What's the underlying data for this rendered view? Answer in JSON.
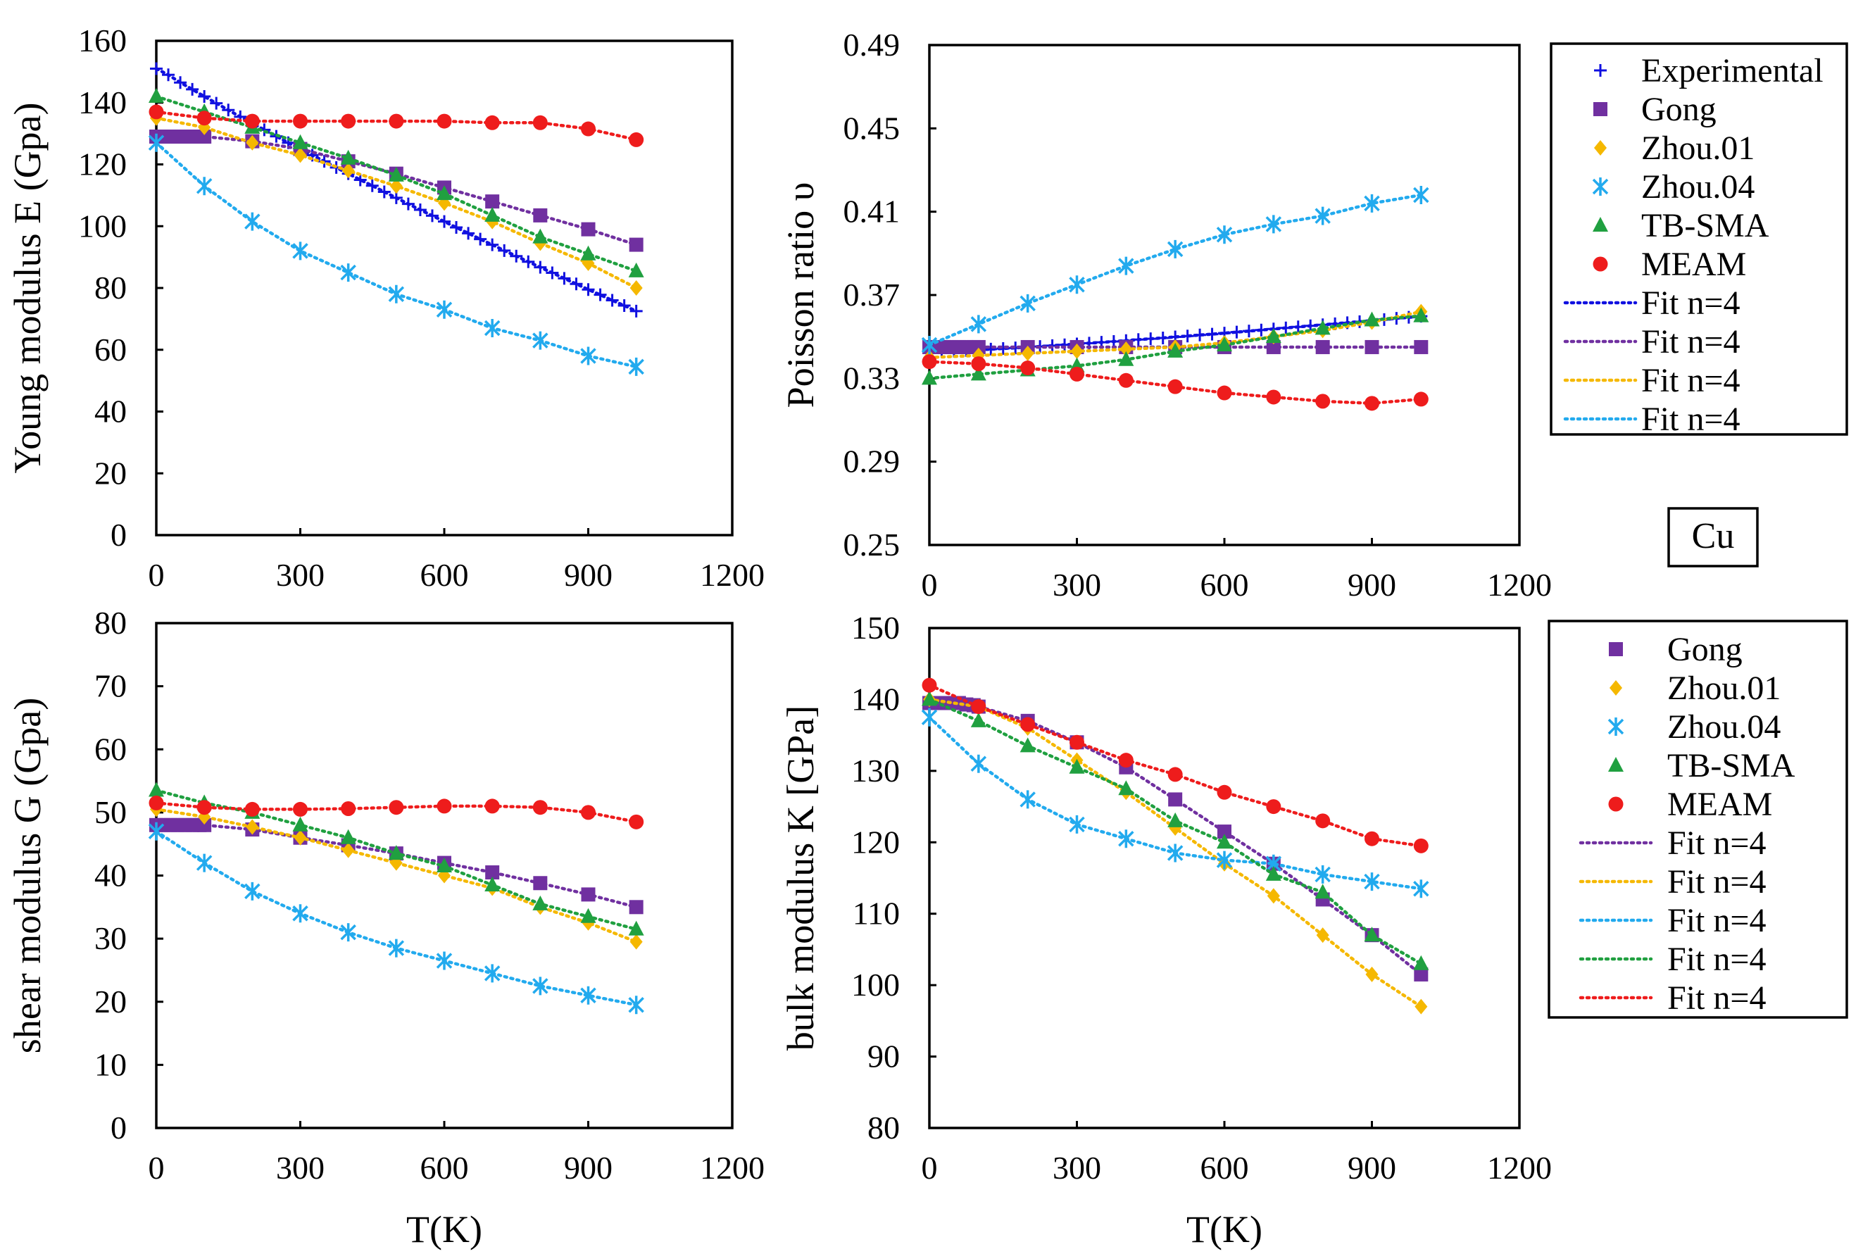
{
  "figure_label": "Cu",
  "colors": {
    "Experimental": "#1010e0",
    "Gong": "#7030a0",
    "Zhou.01": "#f5b800",
    "Zhou.04": "#22aaee",
    "TB-SMA": "#20a040",
    "MEAM": "#ee1c1c"
  },
  "legends": [
    {
      "entries": [
        {
          "type": "marker",
          "series": "Experimental",
          "label": "Experimental"
        },
        {
          "type": "marker",
          "series": "Gong",
          "label": "Gong"
        },
        {
          "type": "marker",
          "series": "Zhou.01",
          "label": "Zhou.01"
        },
        {
          "type": "marker",
          "series": "Zhou.04",
          "label": "Zhou.04"
        },
        {
          "type": "marker",
          "series": "TB-SMA",
          "label": "TB-SMA"
        },
        {
          "type": "marker",
          "series": "MEAM",
          "label": "MEAM"
        },
        {
          "type": "line",
          "series": "Experimental",
          "label": "Fit n=4"
        },
        {
          "type": "line",
          "series": "Gong",
          "label": "Fit n=4"
        },
        {
          "type": "line",
          "series": "Zhou.01",
          "label": "Fit n=4"
        },
        {
          "type": "line",
          "series": "Zhou.04",
          "label": "Fit n=4"
        }
      ]
    },
    {
      "entries": [
        {
          "type": "marker",
          "series": "Gong",
          "label": "Gong"
        },
        {
          "type": "marker",
          "series": "Zhou.01",
          "label": "Zhou.01"
        },
        {
          "type": "marker",
          "series": "Zhou.04",
          "label": "Zhou.04"
        },
        {
          "type": "marker",
          "series": "TB-SMA",
          "label": "TB-SMA"
        },
        {
          "type": "marker",
          "series": "MEAM",
          "label": "MEAM"
        },
        {
          "type": "line",
          "series": "Gong",
          "label": "Fit n=4"
        },
        {
          "type": "line",
          "series": "Zhou.01",
          "label": "Fit n=4"
        },
        {
          "type": "line",
          "series": "Zhou.04",
          "label": "Fit n=4"
        },
        {
          "type": "line",
          "series": "TB-SMA",
          "label": "Fit n=4"
        },
        {
          "type": "line",
          "series": "MEAM",
          "label": "Fit n=4"
        }
      ]
    }
  ],
  "chart_data": [
    {
      "id": "young",
      "type": "scatter",
      "title": "",
      "xlabel": "",
      "ylabel": "Young modulus E (Gpa)",
      "xlim": [
        0,
        1200
      ],
      "ylim": [
        0,
        160
      ],
      "xticks": [
        0,
        300,
        600,
        900,
        1200
      ],
      "yticks": [
        0,
        20,
        40,
        60,
        80,
        100,
        120,
        140,
        160
      ],
      "series": [
        {
          "name": "Experimental",
          "marker": "plus",
          "fit": true,
          "x": [
            0,
            25,
            50,
            75,
            100,
            125,
            150,
            175,
            200,
            225,
            250,
            275,
            300,
            325,
            350,
            375,
            400,
            425,
            450,
            475,
            500,
            525,
            550,
            575,
            600,
            625,
            650,
            675,
            700,
            725,
            750,
            775,
            800,
            825,
            850,
            875,
            900,
            925,
            950,
            975,
            1000
          ],
          "y": [
            151,
            149,
            146.5,
            144.3,
            142,
            139.8,
            137.6,
            135.4,
            133.3,
            131.2,
            129.1,
            127,
            125,
            123,
            121,
            119,
            117,
            115,
            113.1,
            111.1,
            109.2,
            107.2,
            105.3,
            103.4,
            101.5,
            99.6,
            97.7,
            95.8,
            94,
            92.1,
            90.3,
            88.5,
            86.7,
            84.9,
            83.1,
            81.3,
            79.5,
            77.8,
            76,
            74.3,
            72.5
          ]
        },
        {
          "name": "Gong",
          "marker": "square",
          "fit": true,
          "x": [
            0,
            15,
            30,
            45,
            60,
            75,
            90,
            100,
            200,
            300,
            400,
            500,
            600,
            700,
            800,
            900,
            1000
          ],
          "y": [
            129,
            129,
            129,
            129,
            129,
            129,
            129,
            129,
            127.5,
            125,
            121,
            117,
            112.5,
            108,
            103.5,
            99,
            94
          ]
        },
        {
          "name": "Zhou.01",
          "marker": "diamond",
          "fit": true,
          "x": [
            0,
            100,
            200,
            300,
            400,
            500,
            600,
            700,
            800,
            900,
            1000
          ],
          "y": [
            135,
            132,
            127,
            123,
            118,
            113,
            107.5,
            101.5,
            94.5,
            88,
            80
          ]
        },
        {
          "name": "Zhou.04",
          "marker": "x",
          "fit": true,
          "x": [
            0,
            100,
            200,
            300,
            400,
            500,
            600,
            700,
            800,
            900,
            1000
          ],
          "y": [
            127,
            113,
            101.5,
            92,
            85,
            78,
            73,
            67,
            63,
            58,
            54.5
          ]
        },
        {
          "name": "TB-SMA",
          "marker": "triangle",
          "fit": true,
          "x": [
            0,
            100,
            200,
            300,
            400,
            500,
            600,
            700,
            800,
            900,
            1000
          ],
          "y": [
            142,
            137,
            132,
            127,
            122,
            116.5,
            110.5,
            103.5,
            96.5,
            91,
            85.5
          ]
        },
        {
          "name": "MEAM",
          "marker": "circle",
          "fit": true,
          "x": [
            0,
            100,
            200,
            300,
            400,
            500,
            600,
            700,
            800,
            900,
            1000
          ],
          "y": [
            137,
            135,
            134,
            134,
            134,
            134,
            134,
            133.5,
            133.5,
            131.5,
            128
          ]
        }
      ]
    },
    {
      "id": "poisson",
      "type": "scatter",
      "title": "",
      "xlabel": "",
      "ylabel": "Poisson ratio υ",
      "xlim": [
        0,
        1200
      ],
      "ylim": [
        0.25,
        0.49
      ],
      "xticks": [
        0,
        300,
        600,
        900,
        1200
      ],
      "yticks": [
        0.25,
        0.29,
        0.33,
        0.37,
        0.41,
        0.45,
        0.49
      ],
      "ytick_labels": [
        "0.25",
        "0.29",
        "0.33",
        "0.37",
        "0.41",
        "0.45",
        "0.49"
      ],
      "series": [
        {
          "name": "Experimental",
          "marker": "plus",
          "fit": true,
          "x": [
            0,
            25,
            50,
            75,
            100,
            125,
            150,
            175,
            200,
            225,
            250,
            275,
            300,
            325,
            350,
            375,
            400,
            425,
            450,
            475,
            500,
            525,
            550,
            575,
            600,
            625,
            650,
            675,
            700,
            725,
            750,
            775,
            800,
            825,
            850,
            875,
            900,
            925,
            950,
            975,
            1000
          ],
          "y": [
            0.3425,
            0.3428,
            0.3431,
            0.3434,
            0.3437,
            0.344,
            0.3443,
            0.3446,
            0.345,
            0.3453,
            0.3457,
            0.3461,
            0.3465,
            0.3469,
            0.3473,
            0.3477,
            0.3481,
            0.3486,
            0.349,
            0.3494,
            0.3499,
            0.3503,
            0.3508,
            0.3512,
            0.3517,
            0.3522,
            0.3527,
            0.3532,
            0.3537,
            0.3542,
            0.3547,
            0.3552,
            0.3557,
            0.3562,
            0.3567,
            0.3572,
            0.3577,
            0.3582,
            0.3588,
            0.3593,
            0.3598
          ]
        },
        {
          "name": "Gong",
          "marker": "square",
          "fit": true,
          "x": [
            0,
            15,
            30,
            45,
            60,
            75,
            90,
            100,
            200,
            300,
            400,
            500,
            600,
            700,
            800,
            900,
            1000
          ],
          "y": [
            0.345,
            0.345,
            0.345,
            0.345,
            0.345,
            0.345,
            0.345,
            0.345,
            0.345,
            0.345,
            0.345,
            0.345,
            0.345,
            0.345,
            0.345,
            0.345,
            0.345
          ]
        },
        {
          "name": "Zhou.01",
          "marker": "diamond",
          "fit": true,
          "x": [
            0,
            100,
            200,
            300,
            400,
            500,
            600,
            700,
            800,
            900,
            1000
          ],
          "y": [
            0.34,
            0.341,
            0.342,
            0.343,
            0.344,
            0.345,
            0.347,
            0.35,
            0.353,
            0.357,
            0.362
          ]
        },
        {
          "name": "Zhou.04",
          "marker": "x",
          "fit": true,
          "x": [
            0,
            100,
            200,
            300,
            400,
            500,
            600,
            700,
            800,
            900,
            1000
          ],
          "y": [
            0.346,
            0.356,
            0.366,
            0.375,
            0.384,
            0.392,
            0.399,
            0.404,
            0.408,
            0.414,
            0.418
          ]
        },
        {
          "name": "TB-SMA",
          "marker": "triangle",
          "fit": true,
          "x": [
            0,
            100,
            200,
            300,
            400,
            500,
            600,
            700,
            800,
            900,
            1000
          ],
          "y": [
            0.33,
            0.332,
            0.334,
            0.336,
            0.339,
            0.343,
            0.346,
            0.35,
            0.354,
            0.358,
            0.36
          ]
        },
        {
          "name": "MEAM",
          "marker": "circle",
          "fit": true,
          "x": [
            0,
            100,
            200,
            300,
            400,
            500,
            600,
            700,
            800,
            900,
            1000
          ],
          "y": [
            0.338,
            0.337,
            0.335,
            0.332,
            0.329,
            0.326,
            0.323,
            0.321,
            0.319,
            0.318,
            0.32
          ]
        }
      ]
    },
    {
      "id": "shear",
      "type": "scatter",
      "title": "",
      "xlabel": "T(K)",
      "ylabel": "shear modulus G (Gpa)",
      "xlim": [
        0,
        1200
      ],
      "ylim": [
        0,
        80
      ],
      "xticks": [
        0,
        300,
        600,
        900,
        1200
      ],
      "yticks": [
        0,
        10,
        20,
        30,
        40,
        50,
        60,
        70,
        80
      ],
      "series": [
        {
          "name": "Gong",
          "marker": "square",
          "fit": true,
          "x": [
            0,
            15,
            30,
            45,
            60,
            75,
            90,
            100,
            200,
            300,
            400,
            500,
            600,
            700,
            800,
            900,
            1000
          ],
          "y": [
            48,
            48,
            48,
            48,
            48,
            48,
            48,
            48,
            47.3,
            46,
            44.8,
            43.5,
            42,
            40.5,
            38.8,
            37,
            35
          ]
        },
        {
          "name": "Zhou.01",
          "marker": "diamond",
          "fit": true,
          "x": [
            0,
            100,
            200,
            300,
            400,
            500,
            600,
            700,
            800,
            900,
            1000
          ],
          "y": [
            50.5,
            49.3,
            47.7,
            46,
            44,
            42,
            40,
            38,
            35,
            32.5,
            29.5
          ]
        },
        {
          "name": "Zhou.04",
          "marker": "x",
          "fit": true,
          "x": [
            0,
            100,
            200,
            300,
            400,
            500,
            600,
            700,
            800,
            900,
            1000
          ],
          "y": [
            47,
            42,
            37.5,
            34,
            31,
            28.5,
            26.5,
            24.5,
            22.5,
            21,
            19.5
          ]
        },
        {
          "name": "TB-SMA",
          "marker": "triangle",
          "fit": true,
          "x": [
            0,
            100,
            200,
            300,
            400,
            500,
            600,
            700,
            800,
            900,
            1000
          ],
          "y": [
            53.5,
            51.5,
            50,
            48,
            46,
            43.5,
            41.5,
            38.5,
            35.5,
            33.5,
            31.5
          ]
        },
        {
          "name": "MEAM",
          "marker": "circle",
          "fit": true,
          "x": [
            0,
            100,
            200,
            300,
            400,
            500,
            600,
            700,
            800,
            900,
            1000
          ],
          "y": [
            51.5,
            50.8,
            50.5,
            50.5,
            50.6,
            50.8,
            51,
            51,
            50.8,
            50,
            48.5
          ]
        }
      ]
    },
    {
      "id": "bulk",
      "type": "scatter",
      "title": "",
      "xlabel": "T(K)",
      "ylabel": "bulk modulus K  [GPa]",
      "xlim": [
        0,
        1200
      ],
      "ylim": [
        80,
        150
      ],
      "xticks": [
        0,
        300,
        600,
        900,
        1200
      ],
      "yticks": [
        80,
        90,
        100,
        110,
        120,
        130,
        140,
        150
      ],
      "series": [
        {
          "name": "Gong",
          "marker": "square",
          "fit": true,
          "x": [
            0,
            15,
            30,
            45,
            60,
            75,
            90,
            100,
            200,
            300,
            400,
            500,
            600,
            700,
            800,
            900,
            1000
          ],
          "y": [
            139.5,
            139.5,
            139.5,
            139.5,
            139.5,
            139.3,
            139.2,
            139,
            137,
            134,
            130.5,
            126,
            121.5,
            117,
            112,
            107,
            101.5
          ]
        },
        {
          "name": "Zhou.01",
          "marker": "diamond",
          "fit": true,
          "x": [
            0,
            100,
            200,
            300,
            400,
            500,
            600,
            700,
            800,
            900,
            1000
          ],
          "y": [
            140,
            139,
            136,
            131.5,
            127,
            122,
            117,
            112.5,
            107,
            101.5,
            97
          ]
        },
        {
          "name": "Zhou.04",
          "marker": "x",
          "fit": true,
          "x": [
            0,
            100,
            200,
            300,
            400,
            500,
            600,
            700,
            800,
            900,
            1000
          ],
          "y": [
            137.5,
            131,
            126,
            122.5,
            120.5,
            118.5,
            117.5,
            117,
            115.5,
            114.5,
            113.5
          ]
        },
        {
          "name": "TB-SMA",
          "marker": "triangle",
          "fit": true,
          "x": [
            0,
            100,
            200,
            300,
            400,
            500,
            600,
            700,
            800,
            900,
            1000
          ],
          "y": [
            140,
            137,
            133.5,
            130.5,
            127.5,
            123,
            120,
            115.5,
            113,
            107,
            103
          ]
        },
        {
          "name": "MEAM",
          "marker": "circle",
          "fit": true,
          "x": [
            0,
            100,
            200,
            300,
            400,
            500,
            600,
            700,
            800,
            900,
            1000
          ],
          "y": [
            142,
            139,
            136.5,
            134,
            131.5,
            129.5,
            127,
            125,
            123,
            120.5,
            119.5
          ]
        }
      ]
    }
  ]
}
